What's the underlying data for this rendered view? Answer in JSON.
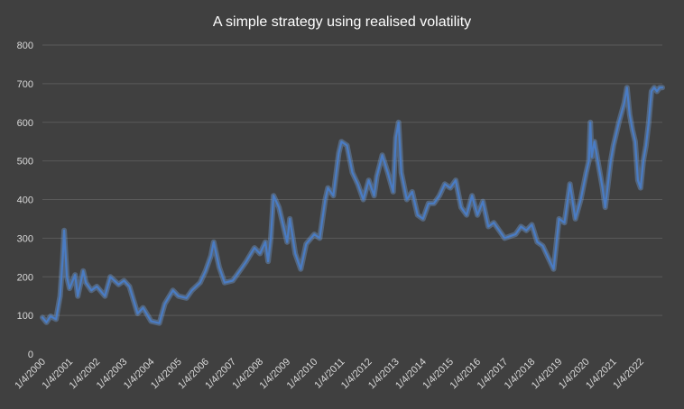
{
  "colors": {
    "background": "#404040",
    "grid": "#5a5a5a",
    "text": "#d9d9d9",
    "title": "#ffffff",
    "series": "#4a7cc4",
    "glow": "#7aaef0"
  },
  "chart_data": {
    "type": "line",
    "title": "A simple strategy using realised volatility",
    "xlabel": "",
    "ylabel": "",
    "ylim": [
      0,
      800
    ],
    "yticks": [
      0,
      100,
      200,
      300,
      400,
      500,
      600,
      700,
      800
    ],
    "grid": true,
    "legend": "none",
    "xlim": [
      2000.0,
      2022.8
    ],
    "xticks": [
      {
        "x": 2000,
        "label": "1/4/2000"
      },
      {
        "x": 2001,
        "label": "1/4/2001"
      },
      {
        "x": 2002,
        "label": "1/4/2002"
      },
      {
        "x": 2003,
        "label": "1/4/2003"
      },
      {
        "x": 2004,
        "label": "1/4/2004"
      },
      {
        "x": 2005,
        "label": "1/4/2005"
      },
      {
        "x": 2006,
        "label": "1/4/2006"
      },
      {
        "x": 2007,
        "label": "1/4/2007"
      },
      {
        "x": 2008,
        "label": "1/4/2008"
      },
      {
        "x": 2009,
        "label": "1/4/2009"
      },
      {
        "x": 2010,
        "label": "1/4/2010"
      },
      {
        "x": 2011,
        "label": "1/4/2011"
      },
      {
        "x": 2012,
        "label": "1/4/2012"
      },
      {
        "x": 2013,
        "label": "1/4/2013"
      },
      {
        "x": 2014,
        "label": "1/4/2014"
      },
      {
        "x": 2015,
        "label": "1/4/2015"
      },
      {
        "x": 2016,
        "label": "1/4/2016"
      },
      {
        "x": 2017,
        "label": "1/4/2017"
      },
      {
        "x": 2018,
        "label": "1/4/2018"
      },
      {
        "x": 2019,
        "label": "1/4/2019"
      },
      {
        "x": 2020,
        "label": "1/4/2020"
      },
      {
        "x": 2021,
        "label": "1/4/2021"
      },
      {
        "x": 2022,
        "label": "1/4/2022"
      }
    ],
    "series": [
      {
        "x": [
          2000.0,
          2000.15,
          2000.3,
          2000.5,
          2000.65,
          2000.75,
          2000.8,
          2000.85,
          2000.9,
          2001.0,
          2001.2,
          2001.3,
          2001.5,
          2001.6,
          2001.8,
          2002.0,
          2002.3,
          2002.5,
          2002.8,
          2003.0,
          2003.2,
          2003.5,
          2003.7,
          2004.0,
          2004.3,
          2004.5,
          2004.8,
          2005.0,
          2005.3,
          2005.5,
          2005.8,
          2006.0,
          2006.2,
          2006.3,
          2006.5,
          2006.7,
          2007.0,
          2007.3,
          2007.5,
          2007.8,
          2008.0,
          2008.2,
          2008.3,
          2008.4,
          2008.5,
          2008.7,
          2008.9,
          2009.0,
          2009.1,
          2009.3,
          2009.5,
          2009.7,
          2010.0,
          2010.2,
          2010.4,
          2010.5,
          2010.7,
          2010.9,
          2011.0,
          2011.2,
          2011.4,
          2011.6,
          2011.8,
          2012.0,
          2012.2,
          2012.3,
          2012.5,
          2012.7,
          2012.9,
          2013.0,
          2013.1,
          2013.2,
          2013.4,
          2013.6,
          2013.8,
          2014.0,
          2014.2,
          2014.4,
          2014.6,
          2014.8,
          2015.0,
          2015.2,
          2015.4,
          2015.6,
          2015.8,
          2016.0,
          2016.2,
          2016.4,
          2016.6,
          2016.8,
          2017.0,
          2017.2,
          2017.4,
          2017.6,
          2017.8,
          2018.0,
          2018.2,
          2018.4,
          2018.6,
          2018.8,
          2019.0,
          2019.2,
          2019.4,
          2019.6,
          2019.8,
          2020.0,
          2020.1,
          2020.15,
          2020.2,
          2020.3,
          2020.5,
          2020.6,
          2020.7,
          2020.9,
          2021.0,
          2021.2,
          2021.4,
          2021.5,
          2021.6,
          2021.7,
          2021.8,
          2021.9,
          2022.0,
          2022.1,
          2022.2,
          2022.3,
          2022.4,
          2022.5,
          2022.6,
          2022.7,
          2022.8
        ],
        "values": [
          95,
          82,
          98,
          90,
          150,
          250,
          320,
          260,
          200,
          170,
          205,
          150,
          215,
          185,
          165,
          175,
          150,
          200,
          180,
          190,
          175,
          105,
          120,
          85,
          80,
          130,
          165,
          150,
          145,
          165,
          185,
          215,
          255,
          290,
          225,
          185,
          190,
          220,
          240,
          275,
          260,
          290,
          240,
          300,
          410,
          380,
          320,
          290,
          350,
          260,
          220,
          285,
          310,
          300,
          400,
          430,
          410,
          520,
          550,
          540,
          470,
          440,
          400,
          450,
          410,
          460,
          515,
          470,
          420,
          560,
          600,
          470,
          400,
          420,
          360,
          350,
          390,
          390,
          410,
          440,
          430,
          450,
          380,
          360,
          410,
          360,
          395,
          330,
          340,
          320,
          300,
          305,
          310,
          330,
          320,
          335,
          290,
          280,
          250,
          220,
          350,
          340,
          440,
          350,
          400,
          470,
          500,
          600,
          510,
          550,
          470,
          430,
          380,
          500,
          540,
          600,
          650,
          690,
          620,
          580,
          550,
          450,
          430,
          500,
          540,
          600,
          680,
          690,
          680,
          690,
          690
        ]
      }
    ]
  }
}
